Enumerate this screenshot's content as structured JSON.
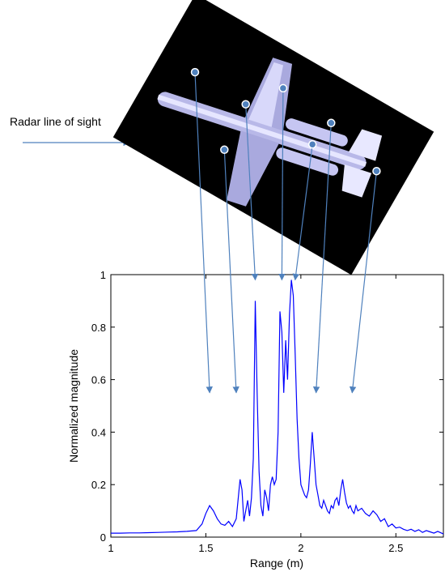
{
  "annotation": {
    "los_label": "Radar line of sight"
  },
  "colors": {
    "series": "#0000ff",
    "arrow": "#4f81bd",
    "marker": "#4f81bd",
    "image_bg": "#000000"
  },
  "icons": {
    "aircraft": "aircraft-top-view-icon",
    "scatter_marker": "scattering-center-dot-icon"
  },
  "chart_data": {
    "type": "line",
    "title": "",
    "xlabel": "Range (m)",
    "ylabel": "Normalized magnitude",
    "xlim": [
      1,
      2.75
    ],
    "ylim": [
      0,
      1
    ],
    "xticks": [
      1,
      1.5,
      2,
      2.5
    ],
    "xtick_labels": [
      "1",
      "1.5",
      "2",
      "2.5"
    ],
    "yticks": [
      0,
      0.2,
      0.4,
      0.6,
      0.8,
      1
    ],
    "ytick_labels": [
      "0",
      "0.2",
      "0.4",
      "0.6",
      "0.8",
      "1"
    ],
    "grid": false,
    "series": [
      {
        "x": [
          1.0,
          1.05,
          1.1,
          1.15,
          1.2,
          1.25,
          1.3,
          1.35,
          1.4,
          1.45,
          1.48,
          1.5,
          1.52,
          1.54,
          1.56,
          1.58,
          1.6,
          1.62,
          1.64,
          1.66,
          1.68,
          1.69,
          1.7,
          1.71,
          1.72,
          1.73,
          1.74,
          1.75,
          1.76,
          1.77,
          1.78,
          1.79,
          1.8,
          1.81,
          1.82,
          1.83,
          1.84,
          1.85,
          1.86,
          1.87,
          1.88,
          1.89,
          1.9,
          1.91,
          1.92,
          1.93,
          1.94,
          1.95,
          1.96,
          1.97,
          1.98,
          1.99,
          2.0,
          2.01,
          2.02,
          2.03,
          2.04,
          2.05,
          2.06,
          2.07,
          2.08,
          2.09,
          2.1,
          2.11,
          2.12,
          2.13,
          2.14,
          2.15,
          2.16,
          2.17,
          2.18,
          2.19,
          2.2,
          2.21,
          2.22,
          2.23,
          2.24,
          2.25,
          2.26,
          2.27,
          2.28,
          2.29,
          2.3,
          2.32,
          2.34,
          2.36,
          2.38,
          2.4,
          2.42,
          2.44,
          2.46,
          2.48,
          2.5,
          2.52,
          2.54,
          2.56,
          2.58,
          2.6,
          2.62,
          2.64,
          2.66,
          2.68,
          2.7,
          2.72,
          2.75
        ],
        "y": [
          0.015,
          0.015,
          0.016,
          0.016,
          0.017,
          0.018,
          0.019,
          0.02,
          0.022,
          0.025,
          0.05,
          0.09,
          0.12,
          0.1,
          0.07,
          0.05,
          0.045,
          0.06,
          0.04,
          0.07,
          0.22,
          0.18,
          0.06,
          0.1,
          0.14,
          0.08,
          0.15,
          0.3,
          0.9,
          0.55,
          0.25,
          0.12,
          0.08,
          0.18,
          0.15,
          0.1,
          0.2,
          0.23,
          0.2,
          0.22,
          0.4,
          0.86,
          0.78,
          0.55,
          0.75,
          0.6,
          0.85,
          0.98,
          0.92,
          0.7,
          0.45,
          0.3,
          0.2,
          0.18,
          0.16,
          0.15,
          0.18,
          0.28,
          0.4,
          0.3,
          0.2,
          0.16,
          0.12,
          0.11,
          0.14,
          0.12,
          0.1,
          0.09,
          0.12,
          0.11,
          0.14,
          0.15,
          0.12,
          0.18,
          0.22,
          0.17,
          0.13,
          0.11,
          0.12,
          0.1,
          0.09,
          0.12,
          0.1,
          0.11,
          0.09,
          0.08,
          0.1,
          0.085,
          0.06,
          0.07,
          0.04,
          0.05,
          0.035,
          0.038,
          0.03,
          0.025,
          0.03,
          0.022,
          0.028,
          0.018,
          0.025,
          0.02,
          0.015,
          0.022,
          0.012
        ]
      }
    ],
    "callouts": [
      {
        "from": [
          0.2,
          0.27
        ],
        "to_x": 1.52,
        "to_y": 0.55
      },
      {
        "from": [
          0.31,
          0.56
        ],
        "to_x": 1.66,
        "to_y": 0.55
      },
      {
        "from": [
          0.39,
          0.39
        ],
        "to_x": 1.76,
        "to_y": 0.98
      },
      {
        "from": [
          0.53,
          0.33
        ],
        "to_x": 1.9,
        "to_y": 0.98
      },
      {
        "from": [
          0.64,
          0.54
        ],
        "to_x": 1.97,
        "to_y": 0.98
      },
      {
        "from": [
          0.71,
          0.46
        ],
        "to_x": 2.08,
        "to_y": 0.55
      },
      {
        "from": [
          0.88,
          0.64
        ],
        "to_x": 2.27,
        "to_y": 0.55
      }
    ]
  }
}
